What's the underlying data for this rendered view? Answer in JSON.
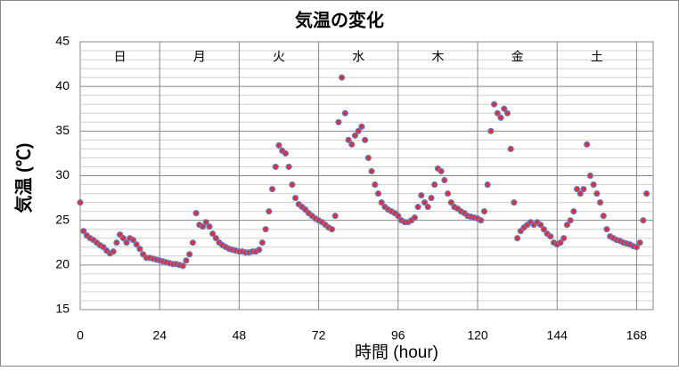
{
  "chart_data": {
    "type": "scatter",
    "title": "気温の変化",
    "x_label": "時間 (hour)",
    "y_label": "気温 (℃)",
    "day_labels": [
      "日",
      "月",
      "火",
      "水",
      "木",
      "金",
      "土"
    ],
    "xlim": [
      0,
      173
    ],
    "xticks": [
      0,
      24,
      48,
      72,
      96,
      120,
      144,
      168
    ],
    "ylim": [
      15,
      45
    ],
    "yticks": [
      15,
      20,
      25,
      30,
      35,
      40,
      45
    ],
    "minor_yticks": [
      16,
      17,
      18,
      19,
      21,
      22,
      23,
      24,
      26,
      27,
      28,
      29,
      31,
      32,
      33,
      34,
      36,
      37,
      38,
      39,
      41,
      42,
      43,
      44
    ],
    "grid": true,
    "series": [
      {
        "color": "#d9303a",
        "edge_color": "#6a7cc6",
        "x": [
          0,
          1,
          2,
          3,
          4,
          5,
          6,
          7,
          8,
          9,
          10,
          11,
          12,
          13,
          14,
          15,
          16,
          17,
          18,
          19,
          20,
          21,
          22,
          23,
          24,
          25,
          26,
          27,
          28,
          29,
          30,
          31,
          32,
          33,
          34,
          35,
          36,
          37,
          38,
          39,
          40,
          41,
          42,
          43,
          44,
          45,
          46,
          47,
          48,
          49,
          50,
          51,
          52,
          53,
          54,
          55,
          56,
          57,
          58,
          59,
          60,
          61,
          62,
          63,
          64,
          65,
          66,
          67,
          68,
          69,
          70,
          71,
          72,
          73,
          74,
          75,
          76,
          77,
          78,
          79,
          80,
          81,
          82,
          83,
          84,
          85,
          86,
          87,
          88,
          89,
          90,
          91,
          92,
          93,
          94,
          95,
          96,
          97,
          98,
          99,
          100,
          101,
          102,
          103,
          104,
          105,
          106,
          107,
          108,
          109,
          110,
          111,
          112,
          113,
          114,
          115,
          116,
          117,
          118,
          119,
          120,
          121,
          122,
          123,
          124,
          125,
          126,
          127,
          128,
          129,
          130,
          131,
          132,
          133,
          134,
          135,
          136,
          137,
          138,
          139,
          140,
          141,
          142,
          143,
          144,
          145,
          146,
          147,
          148,
          149,
          150,
          151,
          152,
          153,
          154,
          155,
          156,
          157,
          158,
          159,
          160,
          161,
          162,
          163,
          164,
          165,
          166,
          167,
          168,
          169,
          170,
          171
        ],
        "values": [
          27,
          23.8,
          23.3,
          23,
          22.8,
          22.5,
          22.2,
          22,
          21.6,
          21.3,
          21.5,
          22.5,
          23.4,
          23,
          22.5,
          23,
          22.8,
          22.3,
          21.8,
          21.2,
          20.8,
          20.8,
          20.7,
          20.6,
          20.5,
          20.4,
          20.3,
          20.2,
          20.1,
          20.1,
          20,
          19.9,
          20.5,
          21.2,
          22.5,
          25.8,
          24.5,
          24.3,
          24.8,
          24.3,
          23.5,
          23,
          22.5,
          22.2,
          22,
          21.8,
          21.7,
          21.6,
          21.5,
          21.5,
          21.4,
          21.4,
          21.5,
          21.5,
          21.7,
          22.5,
          24,
          26,
          28.5,
          31,
          33.4,
          32.8,
          32.5,
          31,
          29,
          27.5,
          26.8,
          26.5,
          26.2,
          25.8,
          25.5,
          25.2,
          25,
          24.8,
          24.5,
          24.2,
          24,
          25.5,
          36,
          41,
          37,
          34,
          33.5,
          34.5,
          35,
          35.5,
          34,
          32,
          30.5,
          29,
          28,
          27,
          26.5,
          26.2,
          26,
          25.8,
          25.5,
          25,
          24.8,
          24.8,
          25,
          25.3,
          26.5,
          27.8,
          27,
          26.5,
          27.5,
          29,
          30.8,
          30.5,
          29.5,
          28,
          27,
          26.5,
          26.3,
          26,
          25.8,
          25.5,
          25.4,
          25.3,
          25.2,
          25,
          26,
          29,
          35,
          38,
          37,
          36.5,
          37.5,
          37,
          33,
          27,
          23,
          23.8,
          24.2,
          24.5,
          24.8,
          24.5,
          24.8,
          24.5,
          24,
          23.5,
          23.2,
          22.5,
          22.3,
          22.5,
          23,
          24.5,
          25,
          26,
          28.5,
          28,
          28.5,
          33.5,
          30,
          29,
          28,
          27,
          25.5,
          24,
          23.2,
          23,
          22.8,
          22.7,
          22.5,
          22.4,
          22.3,
          22.1,
          22,
          22.5,
          25,
          28
        ]
      }
    ]
  }
}
